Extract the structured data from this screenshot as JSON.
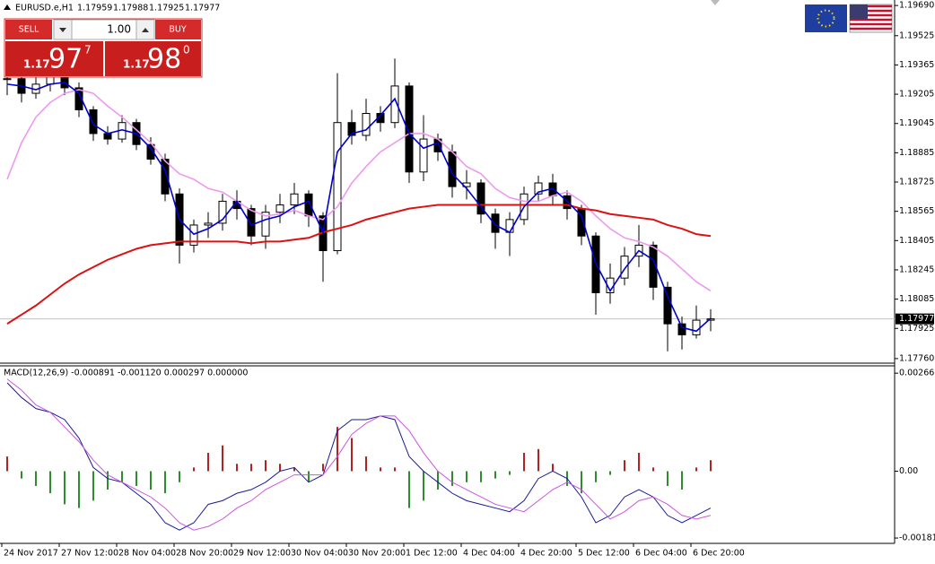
{
  "header": {
    "symbol": "EURUSD.e,H1",
    "ohlc": [
      "1.17959",
      "1.17988",
      "1.17925",
      "1.17977"
    ]
  },
  "trade_panel": {
    "sell": "SELL",
    "buy": "BUY",
    "volume": "1.00",
    "bid": {
      "big": "1.17",
      "pips": "97",
      "point": "7"
    },
    "ask": {
      "big": "1.17",
      "pips": "98",
      "point": "0"
    }
  },
  "chart_data": [
    {
      "type": "candlestick",
      "candle_color": "#000000",
      "ylim": [
        1.1774,
        1.1972
      ],
      "yticks": [
        {
          "value": 1.1969,
          "label": "1.19690"
        },
        {
          "value": 1.19525,
          "label": "1.19525"
        },
        {
          "value": 1.19365,
          "label": "1.19365"
        },
        {
          "value": 1.19205,
          "label": "1.19205"
        },
        {
          "value": 1.19045,
          "label": "1.19045"
        },
        {
          "value": 1.18885,
          "label": "1.18885"
        },
        {
          "value": 1.18725,
          "label": "1.18725"
        },
        {
          "value": 1.18565,
          "label": "1.18565"
        },
        {
          "value": 1.18405,
          "label": "1.18405"
        },
        {
          "value": 1.18245,
          "label": "1.18245"
        },
        {
          "value": 1.18085,
          "label": "1.18085"
        },
        {
          "value": 1.17925,
          "label": "1.17925"
        },
        {
          "value": 1.1776,
          "label": "1.17760"
        }
      ],
      "current_price": 1.17977,
      "x_labels": [
        "24 Nov 2017",
        "27 Nov 12:00",
        "28 Nov 04:00",
        "28 Nov 20:00",
        "29 Nov 12:00",
        "30 Nov 04:00",
        "30 Nov 20:00",
        "1 Dec 12:00",
        "4 Dec 04:00",
        "4 Dec 20:00",
        "5 Dec 12:00",
        "6 Dec 04:00",
        "6 Dec 20:00"
      ],
      "close": [
        1.1929,
        1.1921,
        1.1926,
        1.193,
        1.1924,
        1.1912,
        1.1899,
        1.1896,
        1.1905,
        1.1893,
        1.1885,
        1.1866,
        1.1838,
        1.1849,
        1.185,
        1.1862,
        1.1858,
        1.1843,
        1.1856,
        1.186,
        1.1866,
        1.1854,
        1.1835,
        1.1905,
        1.1898,
        1.191,
        1.1905,
        1.1925,
        1.1878,
        1.1896,
        1.1889,
        1.187,
        1.1872,
        1.1855,
        1.1845,
        1.1852,
        1.1866,
        1.1872,
        1.1865,
        1.1858,
        1.1843,
        1.1812,
        1.182,
        1.1832,
        1.1838,
        1.1815,
        1.1795,
        1.1789,
        1.1797,
        1.17977
      ],
      "high": [
        1.1935,
        1.1932,
        1.193,
        1.1936,
        1.1933,
        1.1927,
        1.1914,
        1.1903,
        1.1909,
        1.1907,
        1.1897,
        1.1888,
        1.1869,
        1.1852,
        1.1856,
        1.1866,
        1.1868,
        1.186,
        1.186,
        1.1866,
        1.1872,
        1.1868,
        1.1856,
        1.1932,
        1.1912,
        1.1918,
        1.1914,
        1.194,
        1.1927,
        1.1909,
        1.1899,
        1.1893,
        1.1879,
        1.1874,
        1.1858,
        1.1856,
        1.187,
        1.1876,
        1.1877,
        1.1868,
        1.186,
        1.1845,
        1.1828,
        1.1837,
        1.1849,
        1.184,
        1.1818,
        1.1799,
        1.1805,
        1.1803
      ],
      "low": [
        1.192,
        1.1916,
        1.1918,
        1.1922,
        1.192,
        1.1908,
        1.1895,
        1.1893,
        1.1894,
        1.189,
        1.1882,
        1.1862,
        1.1828,
        1.1834,
        1.1842,
        1.1846,
        1.1852,
        1.1838,
        1.1836,
        1.185,
        1.1855,
        1.1848,
        1.1818,
        1.1833,
        1.1893,
        1.1895,
        1.19,
        1.1902,
        1.1872,
        1.1873,
        1.1884,
        1.1864,
        1.1863,
        1.185,
        1.1836,
        1.1832,
        1.1849,
        1.1862,
        1.186,
        1.1852,
        1.1838,
        1.18,
        1.1806,
        1.1816,
        1.1826,
        1.1808,
        1.178,
        1.1781,
        1.1787,
        1.1791
      ],
      "series": [
        {
          "color": "#ee99ee",
          "values": [
            1.1874,
            1.1894,
            1.1908,
            1.1916,
            1.1921,
            1.1923,
            1.1921,
            1.1914,
            1.1908,
            1.1901,
            1.1894,
            1.1884,
            1.1877,
            1.1874,
            1.1869,
            1.1867,
            1.1862,
            1.1857,
            1.1854,
            1.1855,
            1.1857,
            1.1854,
            1.1852,
            1.1859,
            1.1872,
            1.1881,
            1.1889,
            1.1894,
            1.1899,
            1.1899,
            1.1896,
            1.1889,
            1.1881,
            1.1877,
            1.1869,
            1.1864,
            1.1862,
            1.1862,
            1.1865,
            1.1867,
            1.1862,
            1.1854,
            1.1847,
            1.1842,
            1.184,
            1.1837,
            1.1832,
            1.1825,
            1.1818,
            1.1813
          ]
        },
        {
          "color": "#dd1111",
          "values": [
            1.1795,
            1.18,
            1.1805,
            1.1811,
            1.1817,
            1.1822,
            1.1826,
            1.183,
            1.1833,
            1.1836,
            1.1838,
            1.1839,
            1.184,
            1.184,
            1.184,
            1.184,
            1.184,
            1.1839,
            1.184,
            1.184,
            1.1841,
            1.1842,
            1.1845,
            1.1847,
            1.1849,
            1.1852,
            1.1854,
            1.1856,
            1.1858,
            1.1859,
            1.186,
            1.186,
            1.186,
            1.186,
            1.186,
            1.186,
            1.186,
            1.186,
            1.186,
            1.186,
            1.1858,
            1.1857,
            1.1855,
            1.1854,
            1.1853,
            1.1852,
            1.1849,
            1.1847,
            1.1844,
            1.1843
          ]
        },
        {
          "color": "#0000cc",
          "values": [
            1.1926,
            1.1925,
            1.1923,
            1.1926,
            1.1927,
            1.1921,
            1.1904,
            1.1899,
            1.1901,
            1.1899,
            1.1891,
            1.1879,
            1.1852,
            1.1844,
            1.1847,
            1.1852,
            1.1862,
            1.1849,
            1.1852,
            1.1854,
            1.1859,
            1.1862,
            1.1845,
            1.1889,
            1.1899,
            1.1901,
            1.1909,
            1.1918,
            1.1899,
            1.1891,
            1.1894,
            1.1877,
            1.1869,
            1.1859,
            1.1849,
            1.1845,
            1.1859,
            1.1867,
            1.1869,
            1.1862,
            1.1854,
            1.1828,
            1.1813,
            1.1825,
            1.1835,
            1.183,
            1.181,
            1.1793,
            1.1791,
            1.1798
          ]
        }
      ]
    },
    {
      "type": "macd",
      "title": "MACD(12,26,9) -0.000891 -0.001120 0.000297 0.000000",
      "ylim": [
        -0.00196,
        0.00286
      ],
      "yticks": [
        0.002661,
        {
          "value": 0,
          "label": "0.00"
        },
        -0.001815
      ],
      "up_color": "#b22222",
      "down_color": "#2e8b2e",
      "histogram": [
        0.0004,
        -0.0002,
        -0.0004,
        -0.0006,
        -0.0009,
        -0.001,
        -0.0008,
        -0.0005,
        -0.0003,
        -0.0004,
        -0.0005,
        -0.0006,
        -0.0003,
        0.0001,
        0.0005,
        0.0007,
        0.0002,
        0.0002,
        0.0003,
        0.0002,
        0.0001,
        -0.0003,
        0.0002,
        0.0012,
        0.0009,
        0.0004,
        0.0001,
        0.0001,
        -0.001,
        -0.0008,
        -0.0005,
        -0.0004,
        -0.0003,
        -0.0003,
        -0.0002,
        -0.0001,
        0.0005,
        0.0006,
        0.0002,
        -0.0004,
        -0.0006,
        -0.0003,
        -0.0001,
        0.0003,
        0.0005,
        0.0001,
        -0.0004,
        -0.0005,
        0.0001,
        0.0003
      ],
      "series": [
        {
          "color": "#1a1a99",
          "values": [
            0.0024,
            0.002,
            0.0017,
            0.0016,
            0.0014,
            0.0009,
            0.0001,
            -0.0002,
            -0.0003,
            -0.0006,
            -0.0009,
            -0.0014,
            -0.0016,
            -0.0014,
            -0.0009,
            -0.0008,
            -0.0006,
            -0.0005,
            -0.0003,
            0.0,
            0.0001,
            -0.0003,
            -0.0001,
            0.0011,
            0.0014,
            0.0014,
            0.0015,
            0.0014,
            0.0004,
            0.0,
            -0.0003,
            -0.0006,
            -0.0008,
            -0.0009,
            -0.001,
            -0.0011,
            -0.0008,
            -0.0002,
            0.0,
            -0.0002,
            -0.0007,
            -0.0014,
            -0.0012,
            -0.0007,
            -0.0005,
            -0.0007,
            -0.0012,
            -0.0014,
            -0.0012,
            -0.001
          ]
        },
        {
          "color": "#cc55dd",
          "values": [
            0.0025,
            0.0022,
            0.0018,
            0.0016,
            0.0012,
            0.0008,
            0.0003,
            -0.0001,
            -0.0003,
            -0.0005,
            -0.0007,
            -0.001,
            -0.0014,
            -0.0016,
            -0.0015,
            -0.0013,
            -0.001,
            -0.0008,
            -0.0005,
            -0.0003,
            -0.0001,
            -0.0001,
            -0.0001,
            0.0004,
            0.001,
            0.0013,
            0.0015,
            0.0015,
            0.0011,
            0.0005,
            0.0,
            -0.0003,
            -0.0005,
            -0.0007,
            -0.0009,
            -0.001,
            -0.0011,
            -0.0008,
            -0.0005,
            -0.0003,
            -0.0005,
            -0.0009,
            -0.0013,
            -0.0011,
            -0.0008,
            -0.0007,
            -0.0009,
            -0.0012,
            -0.0013,
            -0.0012
          ]
        }
      ]
    }
  ]
}
